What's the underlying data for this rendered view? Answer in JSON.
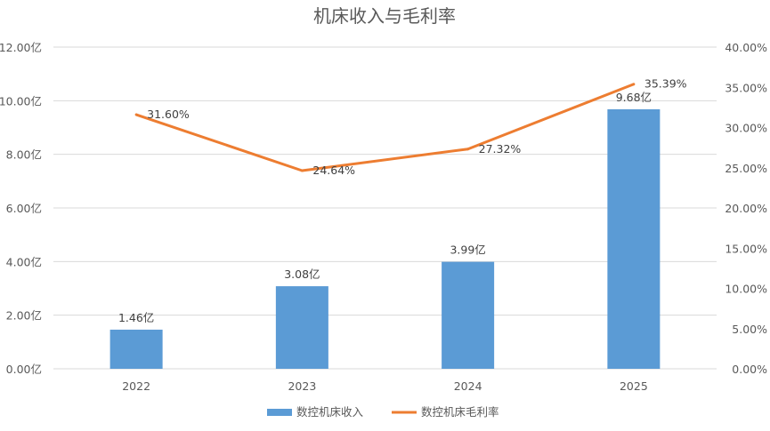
{
  "chart_data": {
    "type": "bar",
    "title": "机床收入与毛利率",
    "categories": [
      "2022",
      "2023",
      "2024",
      "2025"
    ],
    "series": [
      {
        "name": "数控机床收入",
        "type": "bar",
        "axis": "left",
        "values": [
          1.46,
          3.08,
          3.99,
          9.68
        ],
        "labels": [
          "1.46亿",
          "3.08亿",
          "3.99亿",
          "9.68亿"
        ],
        "color": "#5B9BD5"
      },
      {
        "name": "数控机床毛利率",
        "type": "line",
        "axis": "right",
        "values": [
          31.6,
          24.64,
          27.32,
          35.39
        ],
        "labels": [
          "31.60%",
          "24.64%",
          "27.32%",
          "35.39%"
        ],
        "color": "#ED7D31"
      }
    ],
    "y_left": {
      "range": [
        0,
        12
      ],
      "ticks": [
        "0.00亿",
        "2.00亿",
        "4.00亿",
        "6.00亿",
        "8.00亿",
        "10.00亿",
        "12.00亿"
      ]
    },
    "y_right": {
      "range": [
        0,
        40
      ],
      "ticks": [
        "0.00%",
        "5.00%",
        "10.00%",
        "15.00%",
        "20.00%",
        "25.00%",
        "30.00%",
        "35.00%",
        "40.00%"
      ]
    },
    "grid": true,
    "legend_position": "bottom",
    "gridline_color": "#D9D9D9"
  }
}
